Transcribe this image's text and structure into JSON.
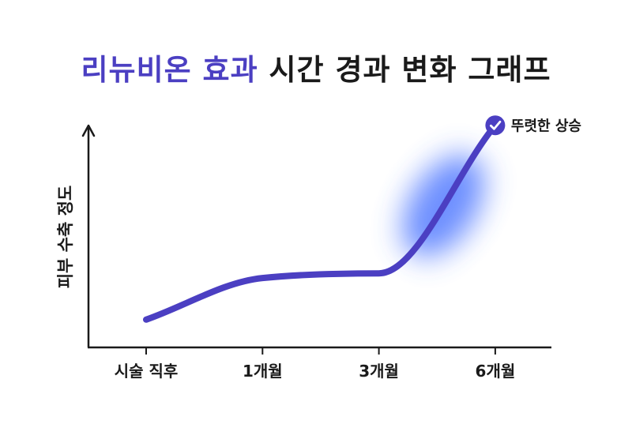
{
  "title": {
    "highlight": "리뉴비온 효과",
    "rest": " 시간 경과 변화 그래프"
  },
  "colors": {
    "accent": "#4b3fc2",
    "glow": "#3d6bff",
    "axis": "#1a1a1a",
    "text": "#1a1a1a"
  },
  "chart_data": {
    "type": "line",
    "ylabel": "피부 수축 정도",
    "xlabel": "",
    "categories": [
      "시술 직후",
      "1개월",
      "3개월",
      "6개월"
    ],
    "x": [
      0,
      1,
      2,
      3
    ],
    "series": [
      {
        "values": [
          0.12,
          0.3,
          0.32,
          0.96
        ]
      }
    ],
    "ylim": [
      0,
      1
    ],
    "annotation": {
      "text": "뚜렷한 상승",
      "icon": "check-circle-icon",
      "at": 3
    },
    "highlight_region": {
      "from": 2,
      "to": 3
    },
    "grid": false,
    "legend": "none"
  }
}
